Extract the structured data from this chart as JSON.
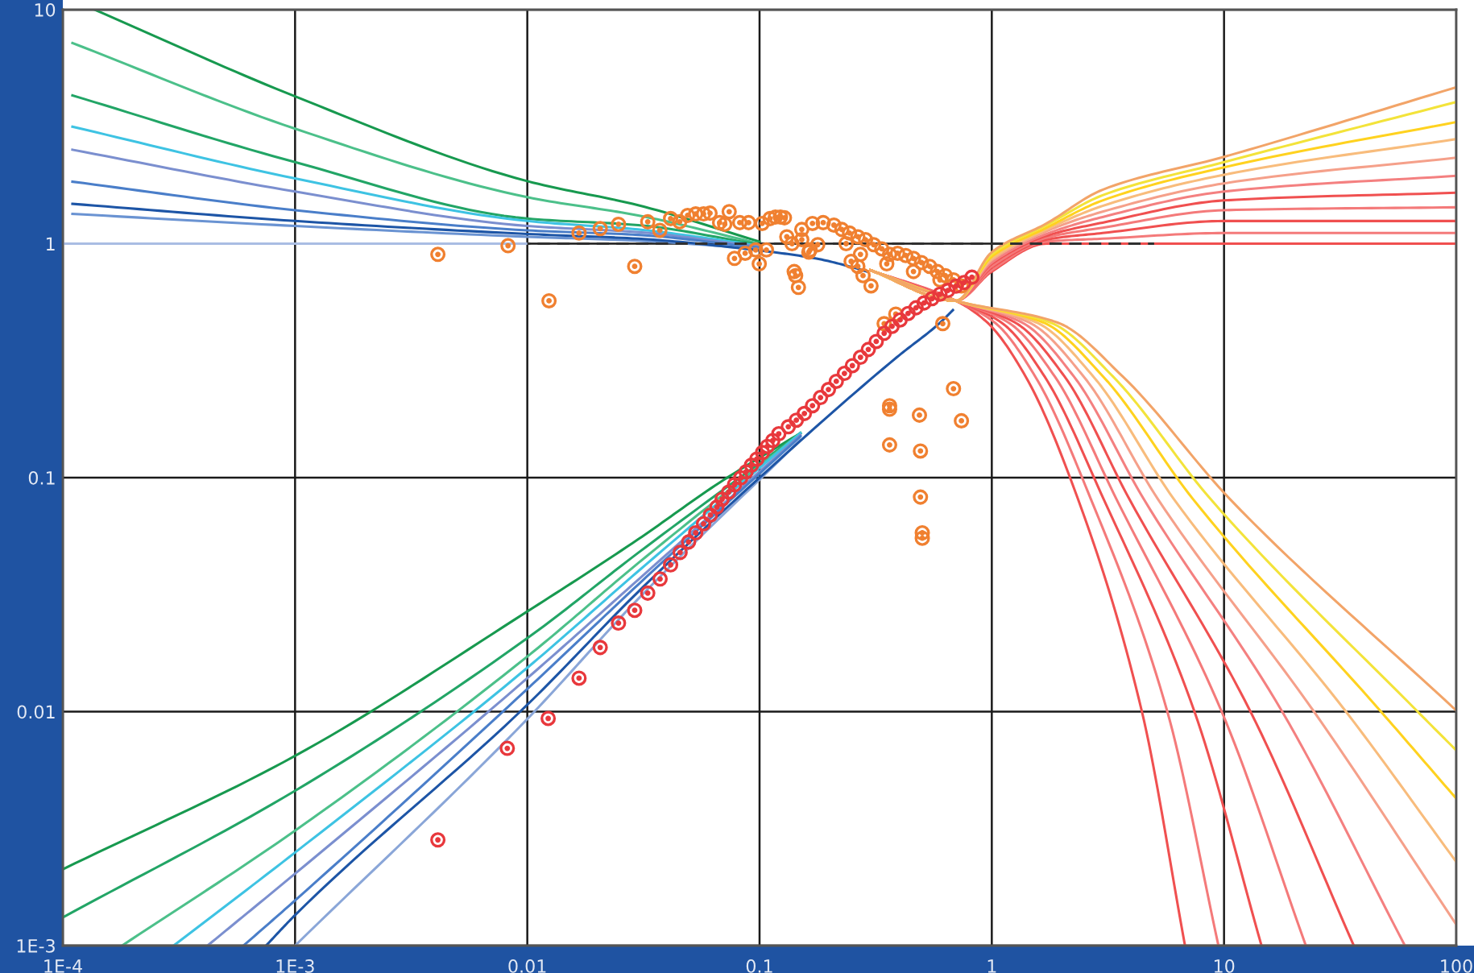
{
  "chart_data": {
    "type": "line",
    "log": "xy",
    "xlim": [
      0.0001,
      100
    ],
    "ylim": [
      0.001,
      10
    ],
    "xticks": [
      {
        "value": 0.0001,
        "label": "1E-4"
      },
      {
        "value": 0.001,
        "label": "1E-3"
      },
      0.01,
      0.1,
      1,
      10,
      100
    ],
    "yticks": [
      {
        "value": 0.001,
        "label": "1E-3"
      },
      0.01,
      0.1,
      1,
      10
    ],
    "grid": true,
    "series": [
      {
        "color": "#a9bde3",
        "x": [
          0.0001,
          0.01
        ],
        "values": [
          1,
          1
        ]
      },
      {
        "color": "#17994f",
        "x": [
          0.000137,
          0.001,
          0.01,
          0.03,
          0.1
        ],
        "values": [
          10,
          4.26,
          1.85,
          1.46,
          1.02
        ]
      },
      {
        "color": "#4cc08a",
        "x": [
          0.00011,
          0.001,
          0.01,
          0.03,
          0.1
        ],
        "values": [
          7.2,
          3.1,
          1.58,
          1.32,
          1.0
        ]
      },
      {
        "color": "#22a566",
        "x": [
          0.00011,
          0.001,
          0.01,
          0.03,
          0.1
        ],
        "values": [
          4.3,
          2.23,
          1.28,
          1.2,
          0.99
        ]
      },
      {
        "color": "#3ec3e3",
        "x": [
          0.00011,
          0.001,
          0.01,
          0.03,
          0.1
        ],
        "values": [
          3.16,
          1.9,
          1.25,
          1.15,
          0.98
        ]
      },
      {
        "color": "#7b8fcf",
        "x": [
          0.00011,
          0.001,
          0.01,
          0.03,
          0.1
        ],
        "values": [
          2.52,
          1.67,
          1.19,
          1.12,
          0.97
        ]
      },
      {
        "color": "#4a7ec9",
        "x": [
          0.00011,
          0.001,
          0.01,
          0.03,
          0.1
        ],
        "values": [
          1.84,
          1.39,
          1.14,
          1.09,
          0.96
        ]
      },
      {
        "color": "#6a93d2",
        "x": [
          0.00011,
          0.001,
          0.01,
          0.03,
          0.1
        ],
        "values": [
          1.34,
          1.19,
          1.07,
          1.03,
          0.95
        ]
      },
      {
        "color": "#1d55a6",
        "x": [
          0.00011,
          0.001,
          0.01,
          0.03,
          0.1,
          0.174,
          0.266,
          0.29
        ],
        "values": [
          1.48,
          1.25,
          1.1,
          1.05,
          0.935,
          0.865,
          0.78,
          0.76
        ]
      },
      {
        "color": "#17994f",
        "x": [
          0.0001,
          0.001,
          0.01,
          0.03,
          0.067,
          0.15
        ],
        "values": [
          0.00212,
          0.00647,
          0.0268,
          0.0545,
          0.095,
          0.155
        ]
      },
      {
        "color": "#22a566",
        "x": [
          0.0001,
          0.001,
          0.01,
          0.03,
          0.15
        ],
        "values": [
          0.00132,
          0.00459,
          0.0206,
          0.0477,
          0.155
        ]
      },
      {
        "color": "#4cc08a",
        "x": [
          0.00018,
          0.001,
          0.01,
          0.03,
          0.15
        ],
        "values": [
          0.001,
          0.0031,
          0.0172,
          0.0431,
          0.155
        ]
      },
      {
        "color": "#3ec3e3",
        "x": [
          0.0003,
          0.001,
          0.01,
          0.03,
          0.15
        ],
        "values": [
          0.001,
          0.0025,
          0.0154,
          0.0398,
          0.155
        ]
      },
      {
        "color": "#7b8fcf",
        "x": [
          0.00042,
          0.001,
          0.01,
          0.03,
          0.15
        ],
        "values": [
          0.001,
          0.00203,
          0.0139,
          0.0366,
          0.152
        ]
      },
      {
        "color": "#4a7ec9",
        "x": [
          0.0006,
          0.001,
          0.01,
          0.03,
          0.15
        ],
        "values": [
          0.001,
          0.00156,
          0.0125,
          0.0349,
          0.15
        ]
      },
      {
        "color": "#8aa6d8",
        "x": [
          0.001,
          0.01,
          0.03,
          0.15
        ],
        "values": [
          0.001,
          0.0093,
          0.0303,
          0.145
        ]
      },
      {
        "color": "#1d55a6",
        "x": [
          0.00075,
          0.001,
          0.01,
          0.03,
          0.1,
          0.39,
          0.6,
          0.68
        ],
        "values": [
          0.001,
          0.00135,
          0.0107,
          0.0325,
          0.1,
          0.327,
          0.46,
          0.52
        ]
      },
      {
        "color": "#f05050",
        "x": [
          0.3,
          0.7,
          1,
          1.72,
          3,
          10,
          100
        ],
        "values": [
          0.77,
          0.57,
          0.76,
          1.0,
          1.0,
          1.0,
          1.0
        ]
      },
      {
        "color": "#f47a7a",
        "x": [
          0.3,
          0.7,
          1,
          1.72,
          3,
          10,
          100
        ],
        "values": [
          0.77,
          0.57,
          0.77,
          1.02,
          1.05,
          1.11,
          1.11
        ]
      },
      {
        "color": "#f05050",
        "x": [
          0.3,
          0.7,
          1,
          1.72,
          3,
          10,
          100
        ],
        "values": [
          0.77,
          0.57,
          0.79,
          1.04,
          1.11,
          1.25,
          1.25
        ]
      },
      {
        "color": "#f47a7a",
        "x": [
          0.3,
          0.7,
          1,
          1.72,
          3,
          10,
          100
        ],
        "values": [
          0.77,
          0.57,
          0.8,
          1.06,
          1.17,
          1.39,
          1.43
        ]
      },
      {
        "color": "#f05050",
        "x": [
          0.3,
          0.7,
          1,
          1.72,
          3,
          10,
          100
        ],
        "values": [
          0.77,
          0.57,
          0.82,
          1.08,
          1.23,
          1.53,
          1.65
        ]
      },
      {
        "color": "#f48080",
        "x": [
          0.3,
          0.7,
          1,
          1.72,
          3,
          10,
          100
        ],
        "values": [
          0.77,
          0.57,
          0.83,
          1.1,
          1.3,
          1.67,
          1.95
        ]
      },
      {
        "color": "#f5a08a",
        "x": [
          0.3,
          0.7,
          1,
          1.72,
          3,
          10,
          100
        ],
        "values": [
          0.77,
          0.57,
          0.85,
          1.13,
          1.37,
          1.81,
          2.33
        ]
      },
      {
        "color": "#f8bc7c",
        "x": [
          0.3,
          0.7,
          1,
          1.72,
          3,
          10,
          100
        ],
        "values": [
          0.77,
          0.57,
          0.86,
          1.15,
          1.45,
          1.97,
          2.8
        ]
      },
      {
        "color": "#ffd21f",
        "x": [
          0.3,
          0.7,
          1,
          1.72,
          3,
          10,
          100
        ],
        "values": [
          0.77,
          0.57,
          0.88,
          1.17,
          1.53,
          2.12,
          3.31
        ]
      },
      {
        "color": "#f3e33a",
        "x": [
          0.3,
          0.7,
          1,
          1.72,
          3,
          10,
          100
        ],
        "values": [
          0.77,
          0.57,
          0.9,
          1.2,
          1.61,
          2.23,
          4.03
        ]
      },
      {
        "color": "#f2a468",
        "x": [
          0.3,
          0.7,
          1,
          1.72,
          3,
          10,
          100
        ],
        "values": [
          0.77,
          0.57,
          0.92,
          1.22,
          1.7,
          2.35,
          4.66
        ]
      },
      {
        "color": "#f05050",
        "x": [
          0.3,
          0.7,
          0.957,
          1.4,
          2.35,
          4.43,
          6.79
        ],
        "values": [
          0.77,
          0.57,
          0.46,
          0.27,
          0.081,
          0.01,
          0.001
        ]
      },
      {
        "color": "#f47a7a",
        "x": [
          0.3,
          0.7,
          1.03,
          1.54,
          2.67,
          5.7,
          9.46
        ],
        "values": [
          0.77,
          0.57,
          0.46,
          0.27,
          0.081,
          0.01,
          0.001
        ]
      },
      {
        "color": "#f05050",
        "x": [
          0.3,
          0.7,
          1.1,
          1.69,
          3.03,
          7.46,
          14.5
        ],
        "values": [
          0.77,
          0.57,
          0.46,
          0.27,
          0.081,
          0.01,
          0.001
        ]
      },
      {
        "color": "#f47a7a",
        "x": [
          0.3,
          0.7,
          1.18,
          1.87,
          3.44,
          9.77,
          22.5
        ],
        "values": [
          0.77,
          0.57,
          0.46,
          0.27,
          0.081,
          0.01,
          0.001
        ]
      },
      {
        "color": "#f05050",
        "x": [
          0.3,
          0.7,
          1.26,
          2.06,
          3.91,
          13.0,
          36.2
        ],
        "values": [
          0.77,
          0.57,
          0.46,
          0.27,
          0.081,
          0.01,
          0.001
        ]
      },
      {
        "color": "#f48080",
        "x": [
          0.3,
          0.7,
          1.35,
          2.26,
          4.51,
          17.8,
          60.1
        ],
        "values": [
          0.77,
          0.57,
          0.46,
          0.27,
          0.081,
          0.01,
          0.001
        ]
      },
      {
        "color": "#f5a08a",
        "x": [
          0.3,
          0.7,
          1.45,
          2.49,
          5.19,
          24.4,
          100
        ],
        "values": [
          0.77,
          0.57,
          0.46,
          0.27,
          0.081,
          0.01,
          0.00123
        ]
      },
      {
        "color": "#f8bc7c",
        "x": [
          0.3,
          0.7,
          1.56,
          2.74,
          6.08,
          33.5,
          100
        ],
        "values": [
          0.77,
          0.57,
          0.46,
          0.27,
          0.081,
          0.01,
          0.00228
        ]
      },
      {
        "color": "#ffd21f",
        "x": [
          0.3,
          0.7,
          1.67,
          3.02,
          7.35,
          47.4,
          100
        ],
        "values": [
          0.77,
          0.57,
          0.46,
          0.27,
          0.081,
          0.01,
          0.00425
        ]
      },
      {
        "color": "#f3e33a",
        "x": [
          0.3,
          0.7,
          1.79,
          3.33,
          8.75,
          68.2,
          100
        ],
        "values": [
          0.77,
          0.57,
          0.46,
          0.27,
          0.081,
          0.01,
          0.00683
        ]
      },
      {
        "color": "#f2a468",
        "x": [
          0.3,
          0.7,
          1.92,
          3.67,
          10.6,
          100
        ],
        "values": [
          0.77,
          0.57,
          0.46,
          0.27,
          0.081,
          0.0101
        ]
      },
      {
        "line_style": "dashed",
        "color": "#303030",
        "x": [
          0.01,
          5
        ],
        "values": [
          1,
          1
        ]
      },
      {
        "type": "scatter",
        "marker": "circle",
        "color": "#f08030",
        "x": [
          0.00412,
          0.00826,
          0.0124,
          0.0167,
          0.0206,
          0.0247,
          0.029,
          0.033,
          0.0372,
          0.0414,
          0.0453,
          0.049,
          0.0531,
          0.0574,
          0.0612,
          0.0673,
          0.0708,
          0.074,
          0.078,
          0.0822,
          0.0897,
          0.0867,
          0.0962,
          0.0997,
          0.1026,
          0.107,
          0.111,
          0.117,
          0.123,
          0.128,
          0.131,
          0.138,
          0.141,
          0.143,
          0.147,
          0.163,
          0.178,
          0.236,
          0.248,
          0.265,
          0.279,
          0.302,
          0.344,
          0.386,
          0.615,
          0.684,
          0.363,
          0.363,
          0.488,
          0.74,
          0.363,
          0.493,
          0.493,
          0.502,
          0.502,
          0.152,
          0.169,
          0.188,
          0.209,
          0.226,
          0.244,
          0.265,
          0.286,
          0.31,
          0.336,
          0.363,
          0.393,
          0.426,
          0.46,
          0.498,
          0.54,
          0.583,
          0.631,
          0.684,
          0.74,
          0.152,
          0.272,
          0.353,
          0.46,
          0.598,
          0.165
        ],
        "values": [
          0.9,
          0.98,
          0.57,
          1.11,
          1.16,
          1.21,
          0.8,
          1.24,
          1.14,
          1.28,
          1.24,
          1.32,
          1.34,
          1.34,
          1.35,
          1.23,
          1.21,
          1.37,
          0.865,
          1.23,
          1.23,
          0.91,
          0.94,
          0.82,
          1.22,
          0.94,
          1.28,
          1.3,
          1.3,
          1.29,
          1.07,
          1.0,
          0.76,
          0.73,
          0.65,
          0.92,
          0.99,
          1.0,
          0.84,
          0.8,
          0.73,
          0.66,
          0.455,
          0.5,
          0.455,
          0.24,
          0.203,
          0.196,
          0.185,
          0.175,
          0.138,
          0.13,
          0.0826,
          0.0581,
          0.0551,
          1.15,
          1.22,
          1.23,
          1.2,
          1.15,
          1.11,
          1.07,
          1.04,
          0.99,
          0.95,
          0.9,
          0.91,
          0.89,
          0.865,
          0.83,
          0.8,
          0.76,
          0.73,
          0.7,
          0.66,
          1.04,
          0.9,
          0.82,
          0.76,
          0.7,
          0.94
        ]
      },
      {
        "type": "scatter",
        "marker": "circle",
        "color": "#e8383c",
        "x": [
          0.00412,
          0.0082,
          0.0123,
          0.0167,
          0.0206,
          0.0247,
          0.029,
          0.033,
          0.0373,
          0.0414,
          0.0455,
          0.0495,
          0.0531,
          0.0574,
          0.0614,
          0.0655,
          0.069,
          0.0736,
          0.078,
          0.083,
          0.0875,
          0.0923,
          0.0973,
          0.103,
          0.108,
          0.114,
          0.121,
          0.133,
          0.144,
          0.156,
          0.169,
          0.183,
          0.198,
          0.214,
          0.232,
          0.251,
          0.272,
          0.294,
          0.318,
          0.344,
          0.372,
          0.403,
          0.436,
          0.472,
          0.511,
          0.553,
          0.598,
          0.647,
          0.701,
          0.759,
          0.821
        ],
        "values": [
          0.00283,
          0.00697,
          0.00935,
          0.0139,
          0.0188,
          0.0239,
          0.0271,
          0.0321,
          0.0369,
          0.0424,
          0.0479,
          0.0531,
          0.0581,
          0.0635,
          0.0692,
          0.0748,
          0.0809,
          0.0867,
          0.0933,
          0.0998,
          0.106,
          0.113,
          0.12,
          0.128,
          0.136,
          0.144,
          0.154,
          0.165,
          0.176,
          0.188,
          0.203,
          0.22,
          0.238,
          0.258,
          0.279,
          0.301,
          0.327,
          0.353,
          0.382,
          0.414,
          0.443,
          0.472,
          0.503,
          0.532,
          0.558,
          0.582,
          0.608,
          0.631,
          0.658,
          0.682,
          0.719
        ]
      }
    ]
  }
}
